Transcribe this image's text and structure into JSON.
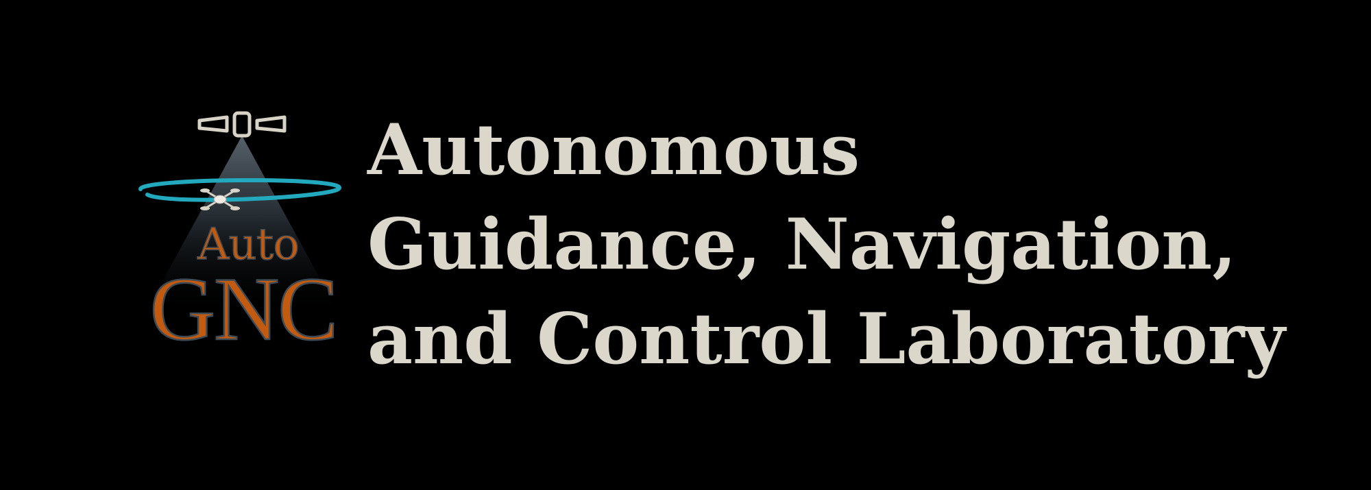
{
  "logo": {
    "auto_text": "Auto",
    "gnc_text": "GNC",
    "icons": [
      "satellite-icon",
      "drone-icon",
      "orbit-ring",
      "light-beam"
    ]
  },
  "title": {
    "line1": "Autonomous",
    "line2": "Guidance, Navigation,",
    "line3": "and Control Laboratory"
  },
  "colors": {
    "background": "#000000",
    "title_text": "#dcd7cb",
    "logo_orange": "#c25a0f",
    "logo_outline": "#3e4c57",
    "orbit_cyan": "#22a9bd",
    "satellite_outline": "#d8d3c7"
  }
}
